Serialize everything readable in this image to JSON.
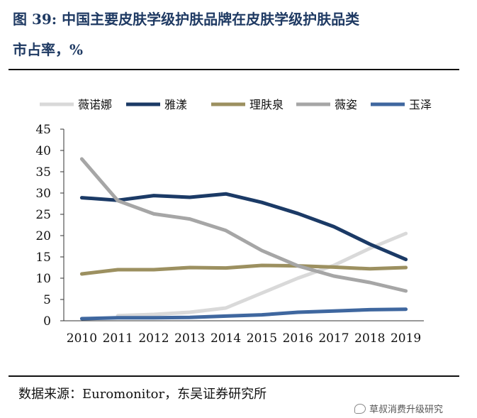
{
  "page": {
    "title_line1": "图 39: 中国主要皮肤学级护肤品牌在皮肤学级护肤品类",
    "title_line2": "市占率，%",
    "source": "数据来源：Euromonitor，东吴证券研究所",
    "watermark": "草叔消费升级研究"
  },
  "chart_data": {
    "type": "line",
    "title": "",
    "xlabel": "",
    "ylabel": "",
    "x": [
      "2010",
      "2011",
      "2012",
      "2013",
      "2014",
      "2015",
      "2016",
      "2017",
      "2018",
      "2019"
    ],
    "ylim": [
      0,
      45
    ],
    "yticks": [
      0,
      5,
      10,
      15,
      20,
      25,
      30,
      35,
      40,
      45
    ],
    "grid": false,
    "legend": "top",
    "series": [
      {
        "name": "薇诺娜",
        "color": "#d9d9d9",
        "values": [
          null,
          1.2,
          1.5,
          2.0,
          3.0,
          6.5,
          10.0,
          13.0,
          17.0,
          20.5
        ]
      },
      {
        "name": "雅漾",
        "color": "#1b3a66",
        "values": [
          28.9,
          28.3,
          29.4,
          29.0,
          29.8,
          27.8,
          25.2,
          22.1,
          18.0,
          14.4
        ]
      },
      {
        "name": "理肤泉",
        "color": "#9c9060",
        "values": [
          11.0,
          12.0,
          12.0,
          12.5,
          12.4,
          13.0,
          12.9,
          12.6,
          12.2,
          12.5
        ]
      },
      {
        "name": "薇姿",
        "color": "#a6a6a6",
        "values": [
          38.0,
          28.2,
          25.1,
          23.9,
          21.2,
          16.5,
          12.9,
          10.5,
          9.0,
          7.0
        ]
      },
      {
        "name": "玉泽",
        "color": "#3f679f",
        "values": [
          0.5,
          0.7,
          0.7,
          0.8,
          1.1,
          1.4,
          2.0,
          2.3,
          2.6,
          2.7
        ]
      }
    ]
  }
}
